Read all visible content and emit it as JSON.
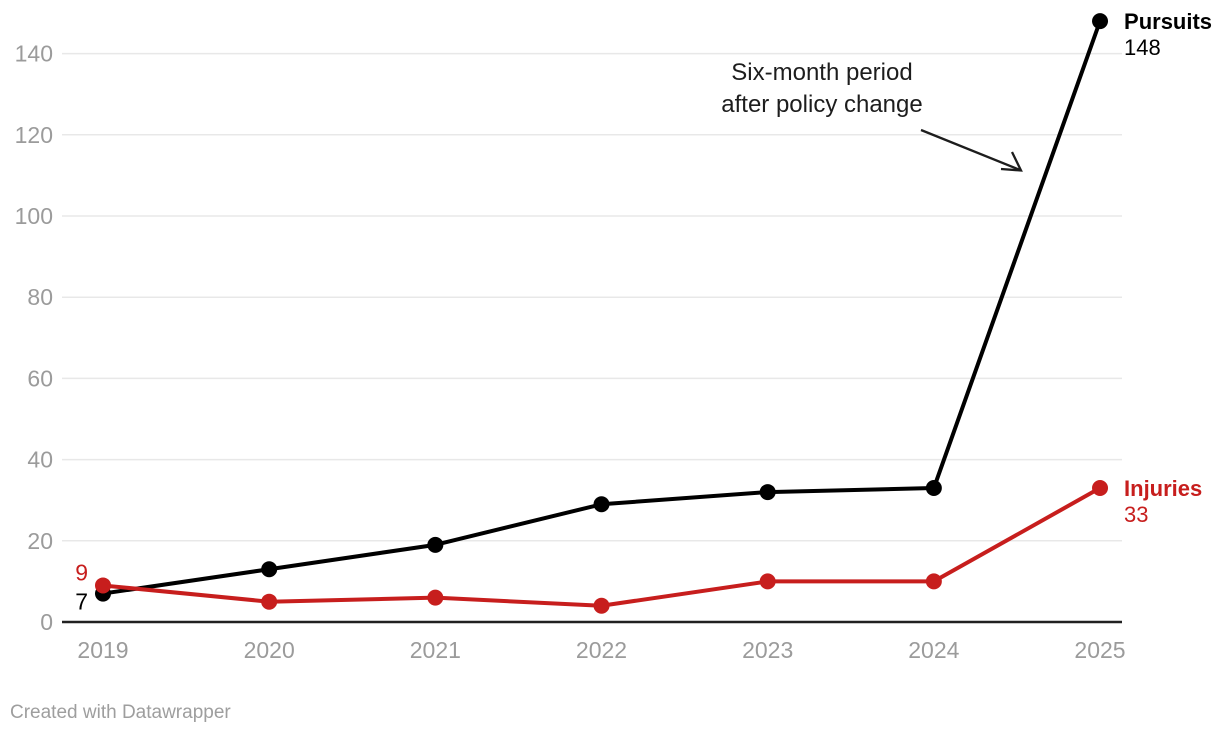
{
  "chart_data": {
    "type": "line",
    "x": [
      2019,
      2020,
      2021,
      2022,
      2023,
      2024,
      2025
    ],
    "series": [
      {
        "name": "Pursuits",
        "color": "#000000",
        "values": [
          7,
          13,
          19,
          29,
          32,
          33,
          148
        ],
        "end_label": {
          "name": "Pursuits",
          "value": "148"
        },
        "start_label": "7"
      },
      {
        "name": "Injuries",
        "color": "#c71e1d",
        "values": [
          9,
          5,
          6,
          4,
          10,
          10,
          33
        ],
        "end_label": {
          "name": "Injuries",
          "value": "33"
        },
        "start_label": "9"
      }
    ],
    "y_ticks": [
      0,
      20,
      40,
      60,
      80,
      100,
      120,
      140
    ],
    "ylim": [
      0,
      148
    ],
    "grid": "horizontal-gridlines-on",
    "legend_position": "line-end-labels",
    "annotation": {
      "lines": [
        "Six-month period",
        "after policy change"
      ],
      "has_arrow": true
    },
    "colors": {
      "axis_text": "#9b9b9b",
      "gridline": "#e8e8e8",
      "baseline": "#212121",
      "annotation_text": "#1d1d1d"
    }
  },
  "footer": {
    "credit": "Created with Datawrapper"
  }
}
